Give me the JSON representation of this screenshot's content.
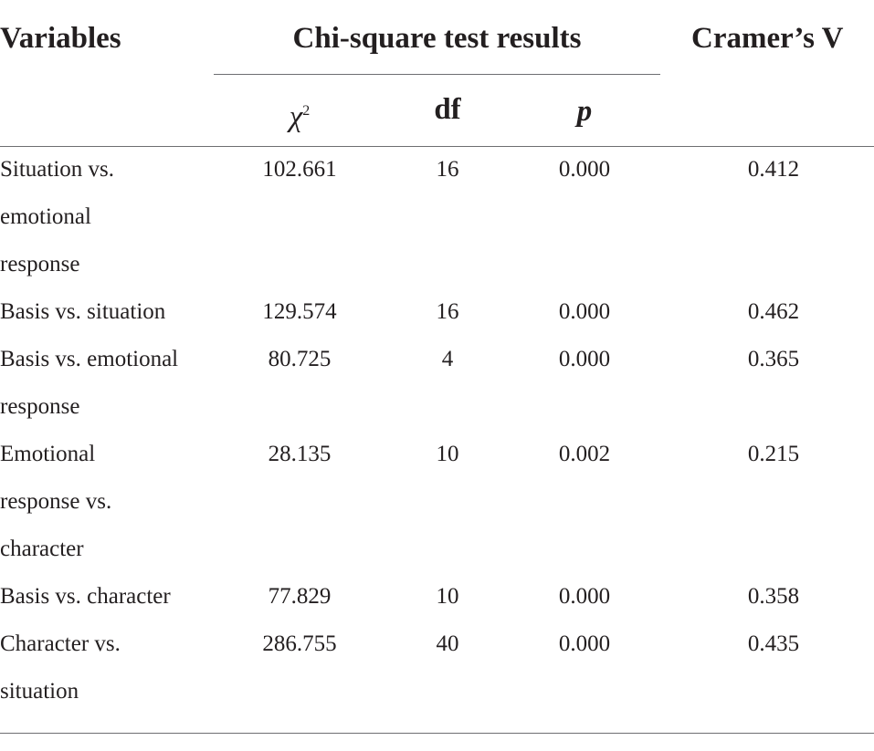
{
  "header": {
    "variables": "Variables",
    "group": "Chi-square test results",
    "cramers_v": "Cramer’s V",
    "chi_symbol": "χ",
    "chi_sup": "2",
    "df": "df",
    "p": "p"
  },
  "rows": [
    {
      "variable_lines": [
        "Situation vs.",
        "emotional",
        "response"
      ],
      "chi2": "102.661",
      "df": "16",
      "p": "0.000",
      "v": "0.412"
    },
    {
      "variable_lines": [
        "Basis vs. situation"
      ],
      "chi2": "129.574",
      "df": "16",
      "p": "0.000",
      "v": "0.462"
    },
    {
      "variable_lines": [
        "Basis vs. emotional",
        "response"
      ],
      "chi2": "80.725",
      "df": "4",
      "p": "0.000",
      "v": "0.365"
    },
    {
      "variable_lines": [
        "Emotional",
        "response vs.",
        "character"
      ],
      "chi2": "28.135",
      "df": "10",
      "p": "0.002",
      "v": "0.215"
    },
    {
      "variable_lines": [
        "Basis vs. character"
      ],
      "chi2": "77.829",
      "df": "10",
      "p": "0.000",
      "v": "0.358"
    },
    {
      "variable_lines": [
        "Character vs.",
        "situation"
      ],
      "chi2": "286.755",
      "df": "40",
      "p": "0.000",
      "v": "0.435"
    }
  ]
}
